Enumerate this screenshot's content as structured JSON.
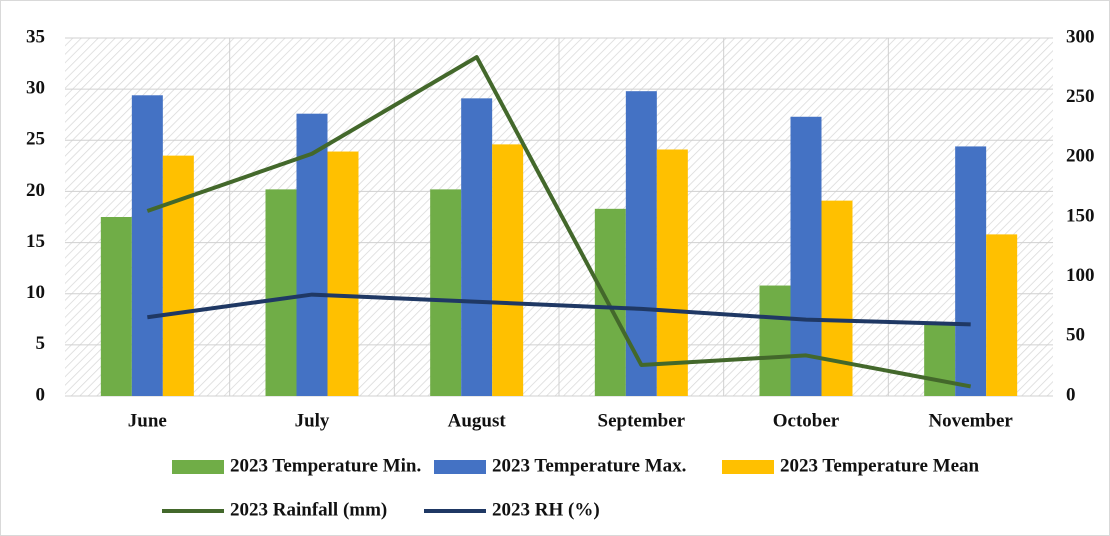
{
  "chart_data": {
    "type": "bar",
    "categories": [
      "June",
      "July",
      "August",
      "September",
      "October",
      "November"
    ],
    "series": [
      {
        "name": "2023 Temperature Min.",
        "color": "#70ad47",
        "values": [
          17.5,
          20.2,
          20.2,
          18.3,
          10.8,
          7.0
        ]
      },
      {
        "name": "2023 Temperature Max.",
        "color": "#4472c4",
        "values": [
          29.4,
          27.6,
          29.1,
          29.8,
          27.3,
          24.4
        ]
      },
      {
        "name": "2023 Temperature Mean",
        "color": "#ffc000",
        "values": [
          23.5,
          23.9,
          24.6,
          24.1,
          19.1,
          15.8
        ]
      },
      {
        "name": "2023 Rainfall (mm)",
        "color": "#43682b",
        "type": "line",
        "axis": "y2",
        "values": [
          155,
          203,
          284,
          26,
          34,
          8
        ]
      },
      {
        "name": "2023 RH  (%)",
        "color": "#1f3864",
        "type": "line",
        "axis": "y2",
        "values": [
          66,
          85,
          79,
          73,
          64,
          60
        ]
      }
    ],
    "ylim": [
      0,
      35
    ],
    "yticks": [
      0,
      5,
      10,
      15,
      20,
      25,
      30,
      35
    ],
    "y2lim": [
      0,
      300
    ],
    "y2ticks": [
      0,
      50,
      100,
      150,
      200,
      250,
      300
    ],
    "grid": true,
    "legend": "bottom"
  }
}
